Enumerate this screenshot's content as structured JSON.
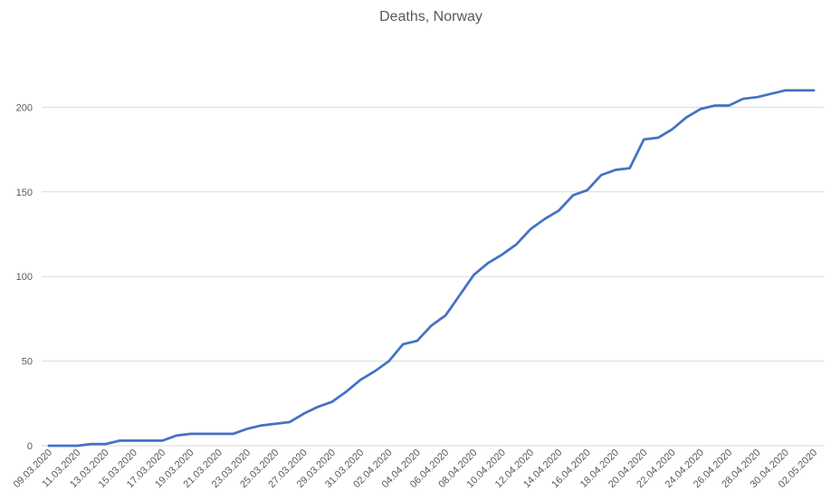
{
  "chart_data": {
    "type": "line",
    "title": "Deaths, Norway",
    "xlabel": "",
    "ylabel": "",
    "ylim": [
      0,
      250
    ],
    "yticks": [
      0,
      50,
      100,
      150,
      200
    ],
    "grid": true,
    "line_color": "#4472C4",
    "grid_color": "#D9D9D9",
    "x_tick_labels": [
      "09.03.2020",
      "11.03.2020",
      "13.03.2020",
      "15.03.2020",
      "17.03.2020",
      "19.03.2020",
      "21.03.2020",
      "23.03.2020",
      "25.03.2020",
      "27.03.2020",
      "29.03.2020",
      "31.03.2020",
      "02.04.2020",
      "04.04.2020",
      "06.04.2020",
      "08.04.2020",
      "10.04.2020",
      "12.04.2020",
      "14.04.2020",
      "16.04.2020",
      "18.04.2020",
      "20.04.2020",
      "22.04.2020",
      "24.04.2020",
      "26.04.2020",
      "28.04.2020",
      "30.04.2020",
      "02.05.2020"
    ],
    "x": [
      "09.03.2020",
      "10.03.2020",
      "11.03.2020",
      "12.03.2020",
      "13.03.2020",
      "14.03.2020",
      "15.03.2020",
      "16.03.2020",
      "17.03.2020",
      "18.03.2020",
      "19.03.2020",
      "20.03.2020",
      "21.03.2020",
      "22.03.2020",
      "23.03.2020",
      "24.03.2020",
      "25.03.2020",
      "26.03.2020",
      "27.03.2020",
      "28.03.2020",
      "29.03.2020",
      "30.03.2020",
      "31.03.2020",
      "01.04.2020",
      "02.04.2020",
      "03.04.2020",
      "04.04.2020",
      "05.04.2020",
      "06.04.2020",
      "07.04.2020",
      "08.04.2020",
      "09.04.2020",
      "10.04.2020",
      "11.04.2020",
      "12.04.2020",
      "13.04.2020",
      "14.04.2020",
      "15.04.2020",
      "16.04.2020",
      "17.04.2020",
      "18.04.2020",
      "19.04.2020",
      "20.04.2020",
      "21.04.2020",
      "22.04.2020",
      "23.04.2020",
      "24.04.2020",
      "25.04.2020",
      "26.04.2020",
      "27.04.2020",
      "28.04.2020",
      "29.04.2020",
      "30.04.2020",
      "01.05.2020",
      "02.05.2020"
    ],
    "series": [
      {
        "values": [
          0,
          0,
          0,
          1,
          1,
          3,
          3,
          3,
          3,
          6,
          7,
          7,
          7,
          7,
          10,
          12,
          13,
          14,
          19,
          23,
          26,
          32,
          39,
          44,
          50,
          60,
          62,
          71,
          77,
          89,
          101,
          108,
          113,
          119,
          128,
          134,
          139,
          148,
          151,
          160,
          163,
          164,
          181,
          182,
          187,
          194,
          199,
          201,
          201,
          205,
          206,
          208,
          210,
          210,
          210
        ]
      }
    ]
  }
}
